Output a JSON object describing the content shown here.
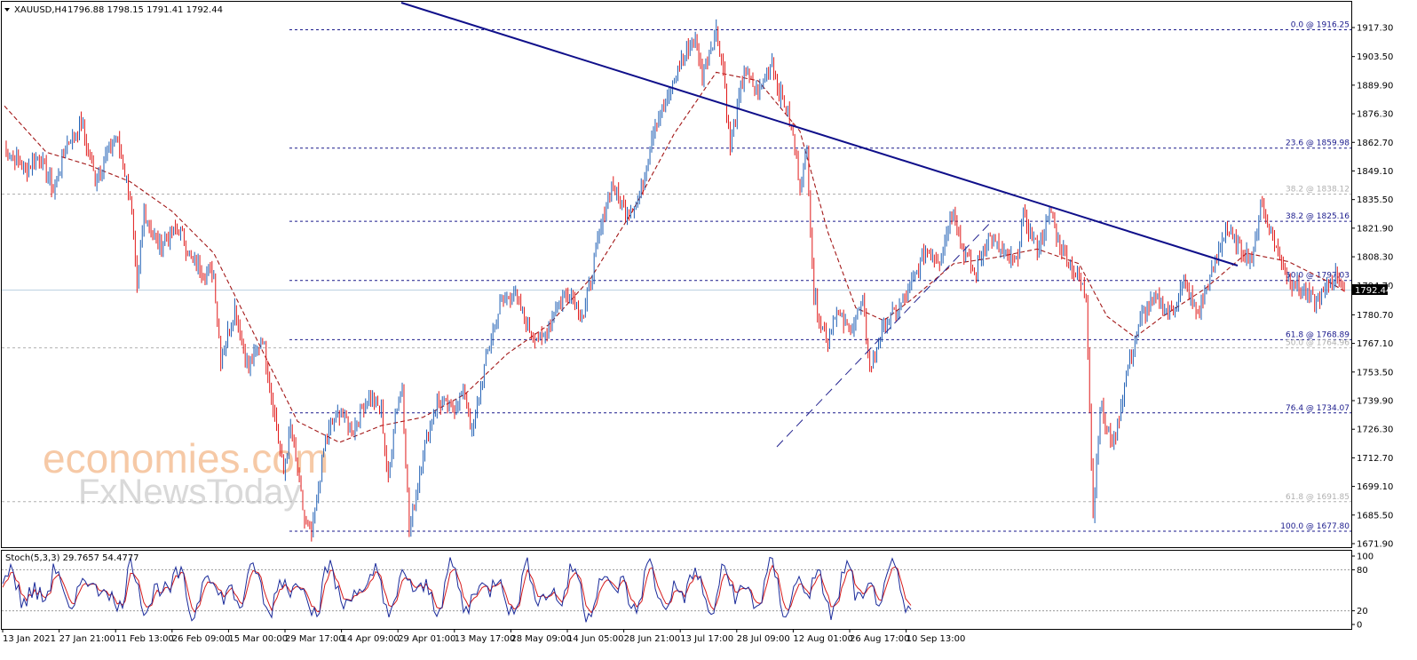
{
  "chart_data": [
    {
      "type": "candlestick",
      "symbol_header": "XAUUSD,H4",
      "ohlc_header": "1796.88 1798.15 1791.41 1792.44",
      "current_price": "1792.44",
      "y_ticks": [
        "1917.30",
        "1903.50",
        "1889.90",
        "1876.30",
        "1862.70",
        "1849.10",
        "1835.50",
        "1821.90",
        "1808.30",
        "1794.70",
        "1780.70",
        "1767.10",
        "1753.50",
        "1739.90",
        "1726.30",
        "1712.70",
        "1699.10",
        "1685.50",
        "1671.90"
      ],
      "x_ticks": [
        "13 Jan 2021",
        "27 Jan 21:00",
        "11 Feb 13:00",
        "26 Feb 09:00",
        "15 Mar 00:00",
        "29 Mar 17:00",
        "14 Apr 09:00",
        "29 Apr 01:00",
        "13 May 17:00",
        "28 May 09:00",
        "14 Jun 05:00",
        "28 Jun 21:00",
        "13 Jul 17:00",
        "28 Jul 09:00",
        "12 Aug 01:00",
        "26 Aug 17:00",
        "10 Sep 13:00"
      ],
      "ylim": [
        1667,
        1922
      ],
      "fib_levels": [
        {
          "label": "0.0 @ 1916.25",
          "value": 1916.25,
          "color": "#1a1a8c"
        },
        {
          "label": "23.6 @ 1859.98",
          "value": 1859.98,
          "color": "#1a1a8c"
        },
        {
          "label": "38.2 @ 1838.12",
          "value": 1838.12,
          "color": "#b0b0b0"
        },
        {
          "label": "38.2 @ 1825.16",
          "value": 1825.16,
          "color": "#1a1a8c"
        },
        {
          "label": "50.0 @ 1797.03",
          "value": 1797.03,
          "color": "#1a1a8c"
        },
        {
          "label": "61.8 @ 1768.89",
          "value": 1768.89,
          "color": "#1a1a8c"
        },
        {
          "label": "50.0 @ 1764.96",
          "value": 1764.96,
          "color": "#b0b0b0"
        },
        {
          "label": "76.4 @ 1734.07",
          "value": 1734.07,
          "color": "#1a1a8c"
        },
        {
          "label": "61.8 @ 1691.85",
          "value": 1691.85,
          "color": "#b0b0b0"
        },
        {
          "label": "100.0 @ 1677.80",
          "value": 1677.8,
          "color": "#1a1a8c"
        }
      ],
      "price_path": [
        [
          0,
          1860
        ],
        [
          3,
          1850
        ],
        [
          5,
          1856
        ],
        [
          7,
          1840
        ],
        [
          9,
          1862
        ],
        [
          11,
          1872
        ],
        [
          13,
          1845
        ],
        [
          16,
          1866
        ],
        [
          18,
          1838
        ],
        [
          19,
          1792
        ],
        [
          20,
          1830
        ],
        [
          22,
          1814
        ],
        [
          25,
          1822
        ],
        [
          27,
          1805
        ],
        [
          30,
          1800
        ],
        [
          31,
          1760
        ],
        [
          32,
          1772
        ],
        [
          33,
          1784
        ],
        [
          35,
          1755
        ],
        [
          37,
          1770
        ],
        [
          40,
          1705
        ],
        [
          41,
          1727
        ],
        [
          43,
          1683
        ],
        [
          44,
          1675
        ],
        [
          46,
          1722
        ],
        [
          48,
          1735
        ],
        [
          50,
          1726
        ],
        [
          52,
          1742
        ],
        [
          54,
          1735
        ],
        [
          55,
          1702
        ],
        [
          56,
          1735
        ],
        [
          57,
          1746
        ],
        [
          58,
          1678
        ],
        [
          60,
          1715
        ],
        [
          62,
          1740
        ],
        [
          64,
          1736
        ],
        [
          66,
          1744
        ],
        [
          67,
          1724
        ],
        [
          69,
          1760
        ],
        [
          71,
          1785
        ],
        [
          73,
          1792
        ],
        [
          75,
          1775
        ],
        [
          77,
          1768
        ],
        [
          79,
          1785
        ],
        [
          81,
          1792
        ],
        [
          83,
          1780
        ],
        [
          85,
          1815
        ],
        [
          87,
          1843
        ],
        [
          89,
          1830
        ],
        [
          91,
          1836
        ],
        [
          93,
          1870
        ],
        [
          95,
          1882
        ],
        [
          97,
          1902
        ],
        [
          99,
          1912
        ],
        [
          100,
          1895
        ],
        [
          101,
          1906
        ],
        [
          102,
          1916
        ],
        [
          103,
          1898
        ],
        [
          104,
          1860
        ],
        [
          106,
          1897
        ],
        [
          108,
          1886
        ],
        [
          110,
          1902
        ],
        [
          111,
          1886
        ],
        [
          112,
          1880
        ],
        [
          113,
          1865
        ],
        [
          114,
          1842
        ],
        [
          115,
          1858
        ],
        [
          116,
          1790
        ],
        [
          117,
          1777
        ],
        [
          118,
          1768
        ],
        [
          119,
          1782
        ],
        [
          121,
          1774
        ],
        [
          123,
          1785
        ],
        [
          124,
          1755
        ],
        [
          126,
          1776
        ],
        [
          128,
          1783
        ],
        [
          130,
          1795
        ],
        [
          132,
          1812
        ],
        [
          134,
          1807
        ],
        [
          136,
          1833
        ],
        [
          137,
          1815
        ],
        [
          139,
          1800
        ],
        [
          141,
          1818
        ],
        [
          143,
          1810
        ],
        [
          145,
          1805
        ],
        [
          146,
          1828
        ],
        [
          148,
          1812
        ],
        [
          150,
          1830
        ],
        [
          151,
          1815
        ],
        [
          153,
          1803
        ],
        [
          155,
          1790
        ],
        [
          156,
          1686
        ],
        [
          157,
          1738
        ],
        [
          158,
          1724
        ],
        [
          159,
          1720
        ],
        [
          161,
          1756
        ],
        [
          163,
          1780
        ],
        [
          165,
          1788
        ],
        [
          167,
          1781
        ],
        [
          169,
          1796
        ],
        [
          171,
          1781
        ],
        [
          173,
          1800
        ],
        [
          175,
          1822
        ],
        [
          177,
          1812
        ],
        [
          179,
          1808
        ],
        [
          180,
          1835
        ],
        [
          182,
          1815
        ],
        [
          184,
          1798
        ],
        [
          186,
          1792
        ],
        [
          188,
          1786
        ],
        [
          190,
          1796
        ],
        [
          191,
          1800
        ],
        [
          192,
          1792
        ]
      ],
      "ma_path": [
        [
          0,
          1880
        ],
        [
          6,
          1858
        ],
        [
          12,
          1852
        ],
        [
          18,
          1844
        ],
        [
          24,
          1830
        ],
        [
          30,
          1810
        ],
        [
          36,
          1770
        ],
        [
          42,
          1730
        ],
        [
          48,
          1720
        ],
        [
          54,
          1728
        ],
        [
          60,
          1732
        ],
        [
          66,
          1743
        ],
        [
          72,
          1762
        ],
        [
          78,
          1776
        ],
        [
          84,
          1798
        ],
        [
          90,
          1830
        ],
        [
          96,
          1867
        ],
        [
          102,
          1896
        ],
        [
          108,
          1892
        ],
        [
          114,
          1868
        ],
        [
          118,
          1820
        ],
        [
          122,
          1784
        ],
        [
          126,
          1778
        ],
        [
          130,
          1788
        ],
        [
          136,
          1805
        ],
        [
          142,
          1808
        ],
        [
          148,
          1812
        ],
        [
          154,
          1805
        ],
        [
          158,
          1780
        ],
        [
          162,
          1770
        ],
        [
          166,
          1780
        ],
        [
          172,
          1793
        ],
        [
          178,
          1810
        ],
        [
          184,
          1806
        ],
        [
          190,
          1796
        ],
        [
          192,
          1792
        ]
      ],
      "stoch": {
        "label": "Stoch(5,3,3) 29.7657 54.4777",
        "levels": [
          80,
          20
        ],
        "axis": [
          "100",
          "80",
          "20",
          "0"
        ]
      }
    }
  ],
  "watermark": {
    "line1": "economies.com",
    "line2": "FxNewsToday"
  }
}
